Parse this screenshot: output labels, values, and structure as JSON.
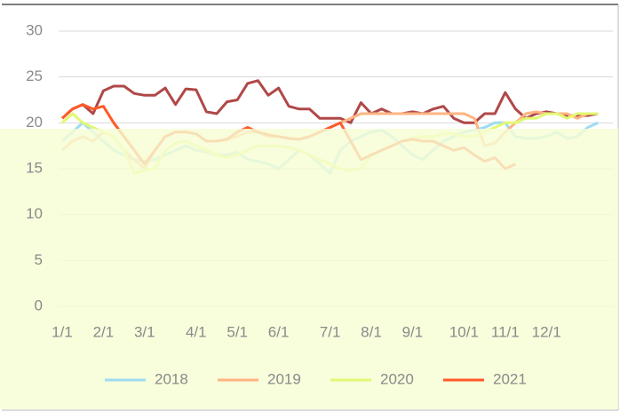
{
  "chart_data": {
    "type": "line",
    "categories": [
      "1/1",
      null,
      null,
      null,
      "2/1",
      null,
      null,
      null,
      "3/1",
      null,
      null,
      null,
      null,
      "4/1",
      null,
      null,
      null,
      "5/1",
      null,
      null,
      null,
      "6/1",
      null,
      null,
      null,
      null,
      "7/1",
      null,
      null,
      null,
      "8/1",
      null,
      null,
      null,
      "9/1",
      null,
      null,
      null,
      null,
      "10/1",
      null,
      null,
      null,
      "11/1",
      null,
      null,
      null,
      "12/1",
      null,
      null,
      null,
      null,
      null
    ],
    "series": [
      {
        "color": "#b04848",
        "values": [
          20.5,
          21.5,
          22,
          21,
          23.5,
          24,
          24,
          23.2,
          23,
          23,
          23.8,
          22,
          23.7,
          23.6,
          21.2,
          21,
          22.3,
          22.5,
          24.3,
          24.6,
          23,
          23.8,
          21.8,
          21.5,
          21.5,
          20.5,
          20.5,
          20.5,
          20,
          22.2,
          21,
          21.5,
          21,
          21,
          21.2,
          21,
          21.5,
          21.8,
          20.5,
          20,
          20,
          21,
          21,
          23.3,
          21.5,
          20.5,
          21,
          21.2,
          21,
          20.8,
          20.8,
          20.8,
          21
        ]
      },
      {
        "name": "2018",
        "color": "#9ddcf2",
        "values": [
          18,
          19,
          20,
          19,
          18,
          17,
          16.5,
          16,
          15.8,
          16,
          16.5,
          17,
          17.5,
          17,
          16.8,
          16.5,
          16.5,
          16.8,
          16,
          15.8,
          15.5,
          15,
          16,
          17,
          16.5,
          15.5,
          14.5,
          17,
          18,
          18.5,
          19,
          19.2,
          18.5,
          17.5,
          16.5,
          16,
          17,
          18,
          18.5,
          19,
          19.2,
          19.5,
          20,
          20,
          18.5,
          18.3,
          18.3,
          18.5,
          19,
          18.3,
          18.5,
          19.5,
          20
        ]
      },
      {
        "name": "2019",
        "color": "#ffb482",
        "values": [
          17,
          18,
          18.5,
          18,
          19,
          18.5,
          17,
          16,
          15,
          17,
          18.5,
          19,
          19,
          18.8,
          18,
          18,
          18.2,
          18.5,
          19,
          19,
          18.5,
          18.5,
          18.3,
          18.2,
          18.5,
          19,
          19.5,
          20,
          20.5,
          21,
          21,
          21,
          21,
          21,
          21,
          21,
          21,
          21,
          21,
          21,
          20.5,
          17.5,
          17.8,
          19,
          20,
          21,
          21.2,
          21,
          21,
          21,
          20.5,
          21,
          21
        ]
      },
      {
        "name": "2020",
        "color": "#e2f872",
        "values": [
          20,
          21,
          20,
          19.5,
          19,
          18.5,
          17,
          14.5,
          14.8,
          15,
          17,
          17.8,
          18,
          17.5,
          17,
          16.5,
          16.2,
          16.5,
          17,
          17.5,
          17.5,
          17.5,
          17.3,
          17,
          16.5,
          16,
          15.5,
          15,
          14.8,
          15,
          16.5,
          17,
          17.5,
          18,
          18.3,
          18.5,
          18.5,
          18.8,
          18.8,
          18.5,
          18.5,
          19,
          19.5,
          20,
          20,
          20.5,
          20.5,
          21,
          21,
          20.5,
          21,
          21,
          21
        ]
      },
      {
        "name": "2021",
        "color": "#ff5a2a",
        "values": [
          20.5,
          21.5,
          22,
          21.5,
          21.8,
          20,
          18.5,
          17,
          15.5,
          17,
          18.5,
          19,
          19,
          18.8,
          18,
          18,
          18.2,
          19,
          19.5,
          19,
          18.7,
          18.5,
          18.3,
          18.2,
          18.5,
          19,
          19.5,
          20,
          18,
          16,
          16.5,
          17,
          17.5,
          18,
          18.2,
          18,
          18,
          17.5,
          17,
          17.3,
          16.5,
          15.8,
          16.2,
          15,
          15.5,
          null,
          null,
          null,
          null,
          null,
          null,
          null,
          null
        ]
      }
    ],
    "ylim": [
      0,
      30
    ],
    "yticks": [
      0,
      5,
      10,
      15,
      20,
      25,
      30
    ],
    "grid": true,
    "legend": "bottom"
  }
}
